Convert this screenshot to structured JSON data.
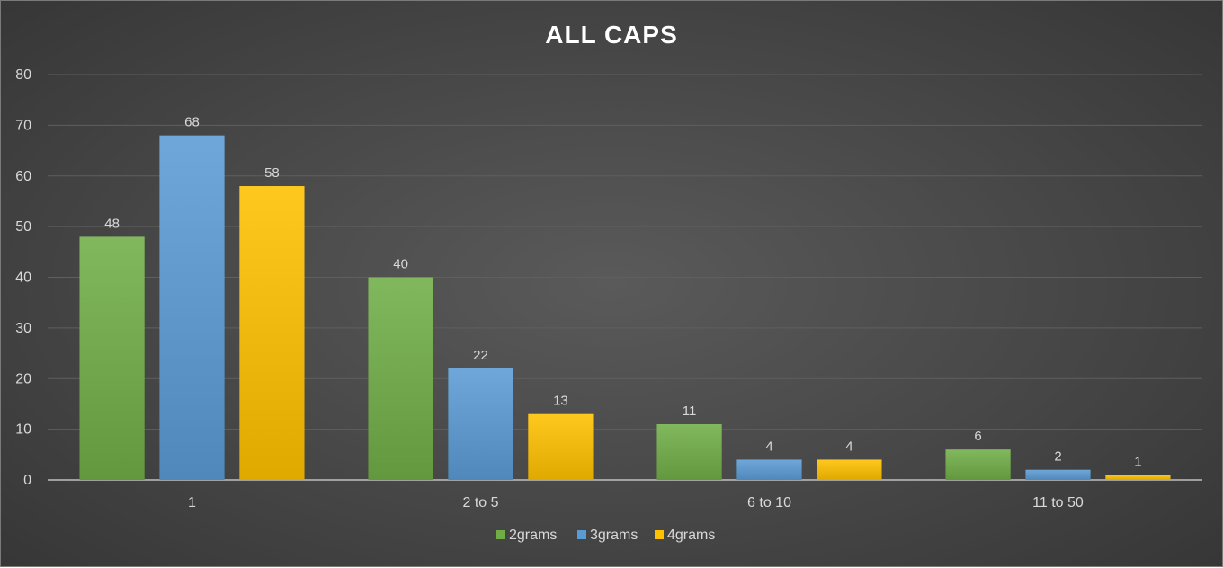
{
  "chart_data": {
    "type": "bar",
    "title": "ALL CAPS",
    "xlabel": "",
    "ylabel": "",
    "categories": [
      "1",
      "2 to 5",
      "6 to 10",
      "11 to 50"
    ],
    "series": [
      {
        "name": "2grams",
        "values": [
          48,
          40,
          11,
          6
        ],
        "color": "#70ad47"
      },
      {
        "name": "3grams",
        "values": [
          68,
          22,
          4,
          2
        ],
        "color": "#5b9bd5"
      },
      {
        "name": "4grams",
        "values": [
          58,
          13,
          4,
          1
        ],
        "color": "#ffc000"
      }
    ],
    "ylim": [
      0,
      80
    ],
    "yticks": [
      0,
      10,
      20,
      30,
      40,
      50,
      60,
      70,
      80
    ],
    "grid": true,
    "data_labels": true,
    "legend_position": "bottom",
    "background": "dark-gradient"
  }
}
